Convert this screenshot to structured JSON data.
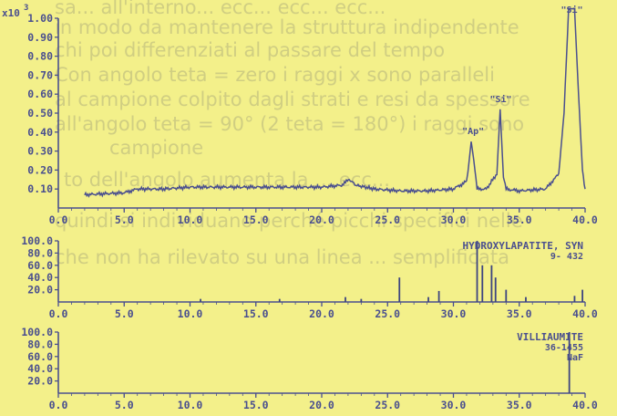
{
  "colors": {
    "background": "#f3f08a",
    "trace": "#4a4f8f",
    "axis": "#4a4f8f",
    "reference_bars": "#3d4480",
    "background_text": "#8a8a80"
  },
  "background_text": [
    "sa... all'interno... ecc... ecc... ecc...",
    "in modo da mantenere la struttura indipendente",
    "chi poi differenziati al passare del tempo",
    "Con angolo teta = zero i raggi x sono paralleli",
    "al campione colpito dagli strati e resi da spessore",
    "all'angolo teta = 90° (2 teta = 180°) i raggi sono",
    "campione",
    "to dell'angolo aumenta la ... ecc...",
    "quindi si individuano perché picchi specifici nelle",
    "che non ha rilevato su una linea ... semplificata"
  ],
  "chart_data": [
    {
      "type": "line",
      "exponent_label": "x10",
      "exponent_power": "3",
      "xlim": [
        0,
        40
      ],
      "ylim": [
        0,
        1.0
      ],
      "x_ticks": [
        "0.0",
        "5.0",
        "10.0",
        "15.0",
        "20.0",
        "25.0",
        "30.0",
        "35.0",
        "40.0"
      ],
      "y_ticks": [
        "0.10",
        "0.20",
        "0.30",
        "0.40",
        "0.50",
        "0.60",
        "0.70",
        "0.80",
        "0.90",
        "1.00"
      ],
      "series": [
        {
          "x": [
            2.0,
            5.0,
            6.0,
            8.0,
            10.0,
            12.0,
            15.0,
            18.0,
            20.0,
            21.5,
            22.1,
            22.6,
            24.0,
            26.0,
            28.0,
            30.0,
            31.0,
            31.2,
            31.35,
            31.55,
            31.8,
            32.5,
            33.3,
            33.55,
            33.8,
            34.0,
            35.0,
            37.0,
            38.0,
            38.4,
            38.75,
            39.0,
            39.2,
            39.5,
            39.8,
            40.0
          ],
          "values": [
            0.07,
            0.08,
            0.1,
            0.1,
            0.11,
            0.11,
            0.11,
            0.11,
            0.11,
            0.12,
            0.15,
            0.12,
            0.1,
            0.09,
            0.09,
            0.1,
            0.14,
            0.25,
            0.35,
            0.25,
            0.1,
            0.1,
            0.18,
            0.52,
            0.16,
            0.1,
            0.09,
            0.1,
            0.18,
            0.5,
            1.05,
            1.05,
            1.05,
            0.6,
            0.2,
            0.1
          ]
        }
      ],
      "annotations": [
        {
          "text": "\"Ap\"",
          "x": 31.5,
          "y": 0.35
        },
        {
          "text": "\"Si\"",
          "x": 33.6,
          "y": 0.52
        },
        {
          "text": "\"Si\"",
          "x": 39.0,
          "y": 1.0
        }
      ]
    },
    {
      "type": "bar",
      "xlim": [
        0,
        40
      ],
      "ylim": [
        0,
        100
      ],
      "x_ticks": [
        "0.0",
        "5.0",
        "10.0",
        "15.0",
        "20.0",
        "25.0",
        "30.0",
        "35.0",
        "40.0"
      ],
      "y_ticks": [
        "20.0",
        "40.0",
        "60.0",
        "80.0",
        "100.0"
      ],
      "labels": [
        "HYDROXYLAPATITE, SYN",
        "9- 432"
      ],
      "x": [
        10.8,
        16.8,
        21.8,
        23.0,
        25.9,
        28.1,
        28.9,
        31.8,
        32.2,
        32.9,
        33.2,
        34.0,
        35.5,
        39.2,
        39.8
      ],
      "values": [
        5,
        5,
        8,
        5,
        40,
        8,
        18,
        100,
        60,
        60,
        40,
        20,
        8,
        10,
        20
      ]
    },
    {
      "type": "bar",
      "xlim": [
        0,
        40
      ],
      "ylim": [
        0,
        100
      ],
      "x_ticks": [
        "0.0",
        "5.0",
        "10.0",
        "15.0",
        "20.0",
        "25.0",
        "30.0",
        "35.0",
        "40.0"
      ],
      "y_ticks": [
        "20.0",
        "40.0",
        "60.0",
        "80.0",
        "100.0"
      ],
      "labels": [
        "VILLIAUMITE",
        "36-1455",
        "NaF"
      ],
      "x": [
        38.8
      ],
      "values": [
        100
      ]
    }
  ]
}
